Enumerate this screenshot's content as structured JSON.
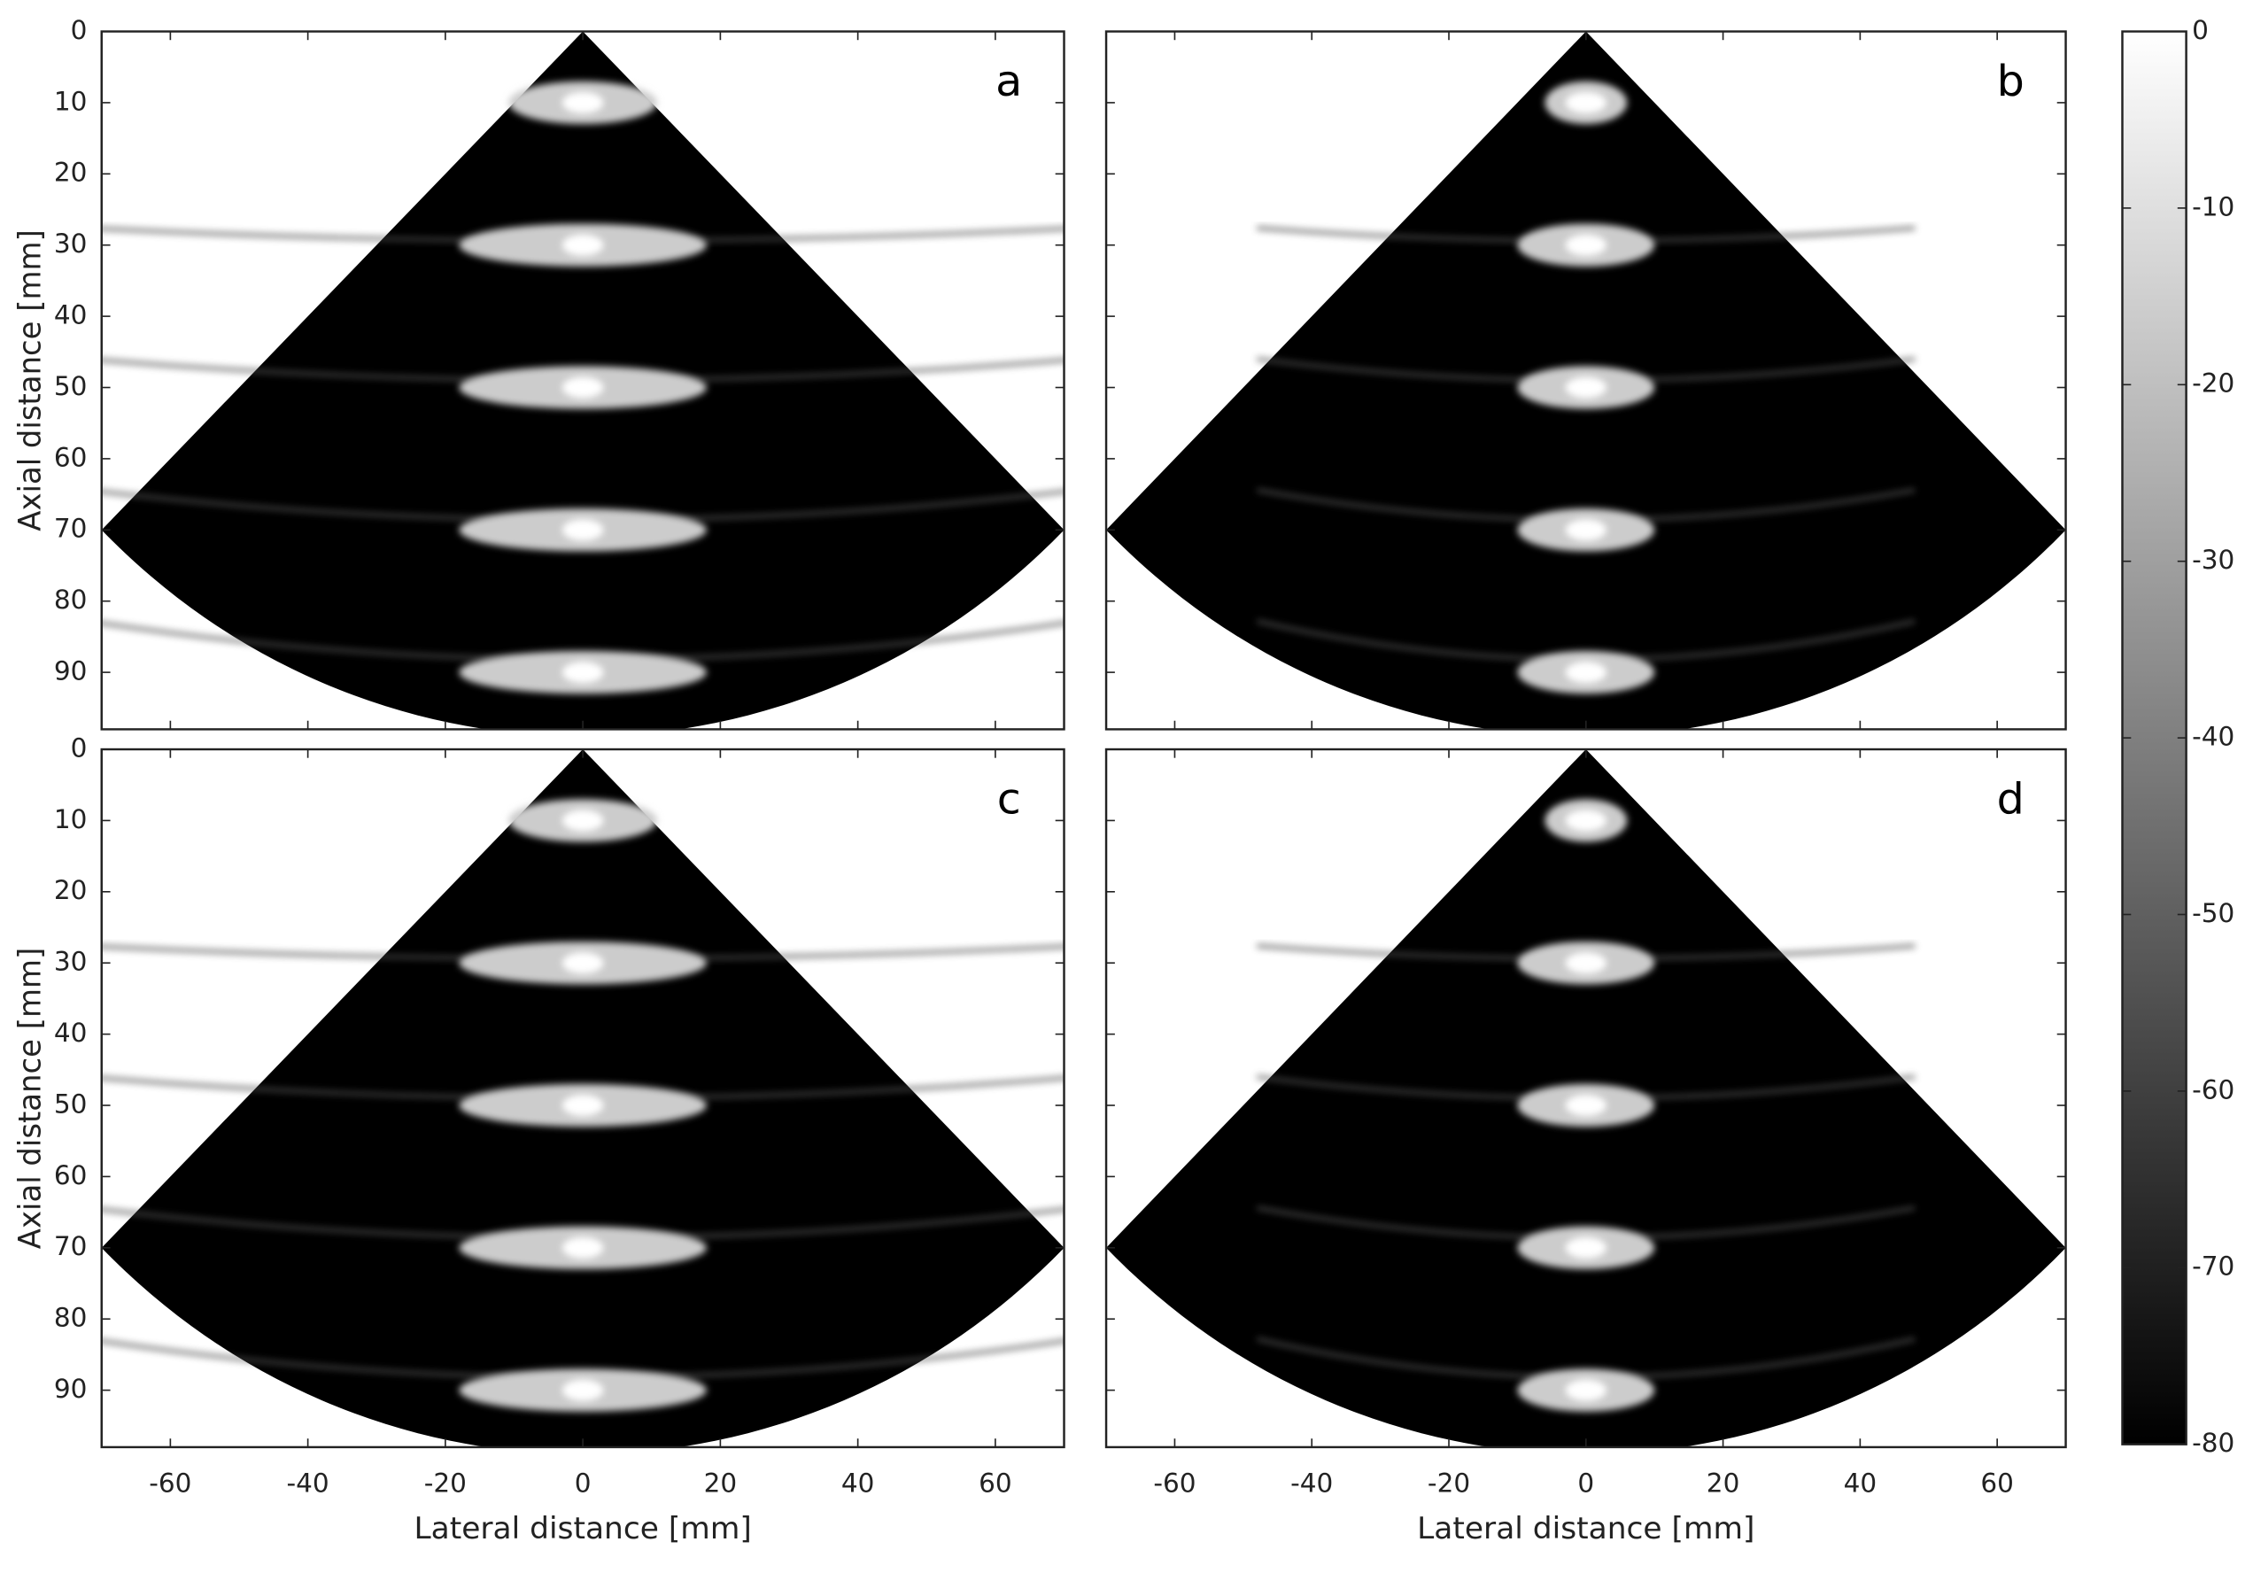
{
  "chart_data": [
    {
      "type": "image",
      "label": "a",
      "xlim": [
        -70,
        70
      ],
      "ylim": [
        0,
        98
      ],
      "xticks": [
        -60,
        -40,
        -20,
        0,
        20,
        40,
        60
      ],
      "yticks": [
        0,
        10,
        20,
        30,
        40,
        50,
        60,
        70,
        80,
        90
      ],
      "ylabel": "Axial distance [mm]",
      "points": {
        "x": [
          0,
          0,
          0,
          0,
          0
        ],
        "y": [
          10,
          30,
          50,
          70,
          90
        ]
      }
    },
    {
      "type": "image",
      "label": "b",
      "xlim": [
        -70,
        70
      ],
      "ylim": [
        0,
        98
      ],
      "xticks": [
        -60,
        -40,
        -20,
        0,
        20,
        40,
        60
      ],
      "yticks": [
        0,
        10,
        20,
        30,
        40,
        50,
        60,
        70,
        80,
        90
      ],
      "points": {
        "x": [
          0,
          0,
          0,
          0,
          0
        ],
        "y": [
          10,
          30,
          50,
          70,
          90
        ]
      }
    },
    {
      "type": "image",
      "label": "c",
      "xlim": [
        -70,
        70
      ],
      "ylim": [
        0,
        98
      ],
      "xticks": [
        -60,
        -40,
        -20,
        0,
        20,
        40,
        60
      ],
      "yticks": [
        0,
        10,
        20,
        30,
        40,
        50,
        60,
        70,
        80,
        90
      ],
      "xlabel": "Lateral distance [mm]",
      "ylabel": "Axial distance [mm]",
      "points": {
        "x": [
          0,
          0,
          0,
          0,
          0
        ],
        "y": [
          10,
          30,
          50,
          70,
          90
        ]
      }
    },
    {
      "type": "image",
      "label": "d",
      "xlim": [
        -70,
        70
      ],
      "ylim": [
        0,
        98
      ],
      "xticks": [
        -60,
        -40,
        -20,
        0,
        20,
        40,
        60
      ],
      "yticks": [
        0,
        10,
        20,
        30,
        40,
        50,
        60,
        70,
        80,
        90
      ],
      "xlabel": "Lateral distance [mm]",
      "points": {
        "x": [
          0,
          0,
          0,
          0,
          0
        ],
        "y": [
          10,
          30,
          50,
          70,
          90
        ]
      }
    },
    {
      "type": "colorbar",
      "clim": [
        -80,
        0
      ],
      "cticks": [
        0,
        -10,
        -20,
        -30,
        -40,
        -50,
        -60,
        -70,
        -80
      ]
    }
  ]
}
